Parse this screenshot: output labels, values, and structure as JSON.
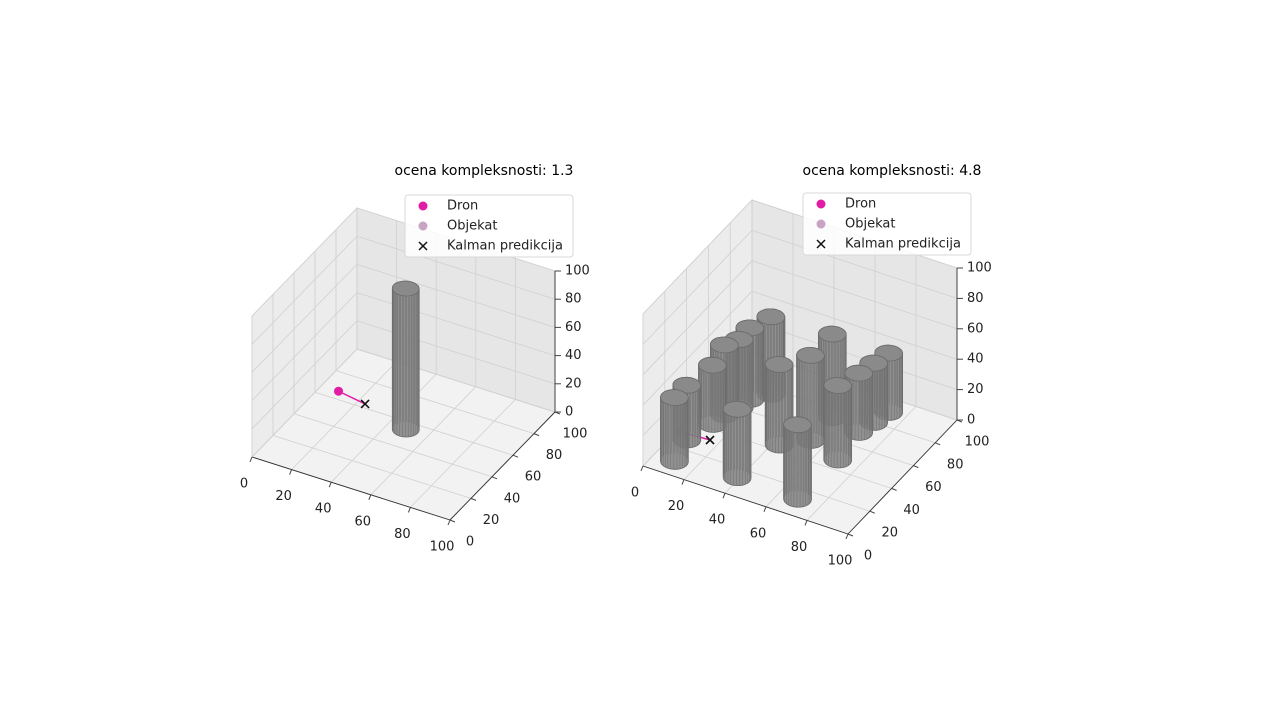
{
  "chart_data": [
    {
      "type": "scatter3d",
      "title": "ocena kompleksnosti: 1.3",
      "xlim": [
        0,
        100
      ],
      "ylim": [
        0,
        100
      ],
      "zlim": [
        0,
        100
      ],
      "xticks": [
        0,
        20,
        40,
        60,
        80,
        100
      ],
      "yticks": [
        0,
        20,
        40,
        60,
        80,
        100
      ],
      "zticks": [
        0,
        20,
        40,
        60,
        80,
        100
      ],
      "grid": true,
      "legend": "upper right",
      "series": [
        {
          "name": "Dron",
          "color": "#e31ca6",
          "marker": "o",
          "x": [
            14
          ],
          "y": [
            56
          ],
          "z": [
            10
          ]
        },
        {
          "name": "Objekat",
          "color": "#c9a3c4",
          "marker": "o",
          "x": [
            14
          ],
          "y": [
            56
          ],
          "z": [
            10
          ]
        },
        {
          "name": "Kalman predikcija",
          "color": "#111111",
          "marker": "x",
          "x": [
            29
          ],
          "y": [
            53
          ],
          "z": [
            10
          ]
        }
      ],
      "obstacles": {
        "color": "#808080",
        "radius": 6,
        "x": [
          49
        ],
        "y": [
          54
        ],
        "height": [
          100
        ]
      }
    },
    {
      "type": "scatter3d",
      "title": "ocena kompleksnosti: 4.8",
      "xlim": [
        0,
        100
      ],
      "ylim": [
        0,
        100
      ],
      "zlim": [
        0,
        100
      ],
      "xticks": [
        0,
        20,
        40,
        60,
        80,
        100
      ],
      "yticks": [
        0,
        20,
        40,
        60,
        80,
        100
      ],
      "zticks": [
        0,
        20,
        40,
        60,
        80,
        100
      ],
      "grid": true,
      "legend": "upper right",
      "series": [
        {
          "name": "Dron",
          "color": "#e31ca6",
          "marker": "o",
          "x": [
            7
          ],
          "y": [
            21
          ],
          "z": [
            10
          ]
        },
        {
          "name": "Objekat",
          "color": "#c9a3c4",
          "marker": "o",
          "x": [
            7
          ],
          "y": [
            21
          ],
          "z": [
            10
          ]
        },
        {
          "name": "Kalman predikcija",
          "color": "#111111",
          "marker": "x",
          "x": [
            21
          ],
          "y": [
            22
          ],
          "z": [
            10
          ]
        }
      ],
      "obstacles": {
        "color": "#808080",
        "radius": 6,
        "x": [
          10,
          7,
          11,
          12,
          15,
          16,
          22,
          39,
          69,
          53,
          53,
          70,
          68,
          70,
          72,
          43
        ],
        "y": [
          10,
          27,
          43,
          52,
          60,
          68,
          76,
          13,
          12,
          54,
          74,
          47,
          70,
          80,
          90,
          44
        ],
        "height": [
          42,
          36,
          39,
          46,
          45,
          47,
          51,
          45,
          49,
          56,
          55,
          49,
          39,
          39,
          39,
          53
        ]
      }
    }
  ]
}
